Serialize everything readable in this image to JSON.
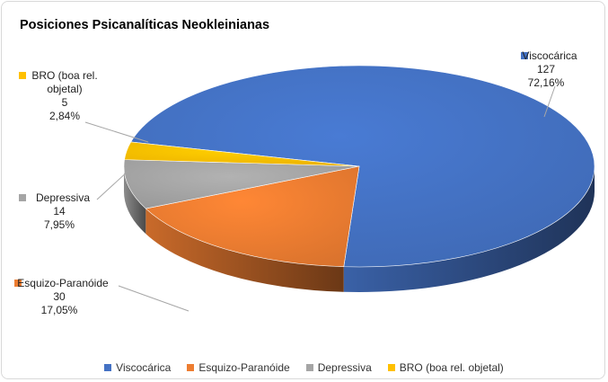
{
  "chart_data": {
    "type": "pie",
    "title": "Posiciones Psicanalíticas Neokleinianas",
    "slices": [
      {
        "label": "Viscocárica",
        "value": 127,
        "percent": "72,16%",
        "color": "#4472c4"
      },
      {
        "label": "Esquizo-Paranóide",
        "value": 30,
        "percent": "17,05%",
        "color": "#ed7d31"
      },
      {
        "label": "Depressiva",
        "value": 14,
        "percent": "7,95%",
        "color": "#a5a5a5"
      },
      {
        "label": "BRO (boa rel. objetal)",
        "value": 5,
        "percent": "2,84%",
        "color": "#ffc000"
      }
    ],
    "legend_position": "bottom"
  }
}
